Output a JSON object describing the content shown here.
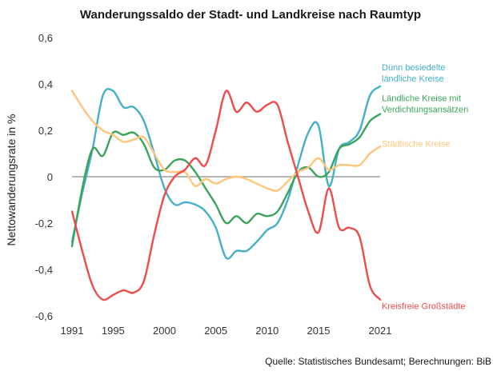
{
  "chart_data": {
    "type": "line",
    "title": "Wanderungssaldo der Stadt- und Landkreise nach Raumtyp",
    "ylabel": "Nettowanderungsrate in %",
    "source": "Quelle: Statistisches Bundesamt; Berechnungen: BiB",
    "xlim": [
      1991,
      2021
    ],
    "ylim": [
      -0.6,
      0.6
    ],
    "x_ticks": [
      1991,
      1995,
      2000,
      2005,
      2010,
      2015,
      2021
    ],
    "y_ticks": [
      0.6,
      0.4,
      0.2,
      0,
      -0.2,
      -0.4,
      -0.6
    ],
    "y_tick_labels": [
      "0,6",
      "0,4",
      "0,2",
      "0",
      "-0,2",
      "-0,4",
      "-0,6"
    ],
    "series": [
      {
        "name": "Dünn besiedelte ländliche Kreise",
        "label_lines": [
          "Dünn besiedelte",
          "ländliche Kreise"
        ],
        "color": "#45AFC8",
        "x": [
          1991,
          1992,
          1993,
          1994,
          1995,
          1996,
          1997,
          1998,
          1999,
          2000,
          2001,
          2002,
          2003,
          2004,
          2005,
          2006,
          2007,
          2008,
          2009,
          2010,
          2011,
          2012,
          2013,
          2014,
          2015,
          2016,
          2017,
          2018,
          2019,
          2020,
          2021
        ],
        "values": [
          -0.28,
          -0.07,
          0.12,
          0.35,
          0.37,
          0.3,
          0.3,
          0.24,
          0.1,
          -0.05,
          -0.12,
          -0.11,
          -0.12,
          -0.15,
          -0.22,
          -0.35,
          -0.32,
          -0.32,
          -0.28,
          -0.23,
          -0.2,
          -0.1,
          0.05,
          0.19,
          0.22,
          -0.04,
          0.12,
          0.15,
          0.2,
          0.35,
          0.39
        ]
      },
      {
        "name": "Ländliche Kreise mit Verdichtungsansätzen",
        "label_lines": [
          "Ländliche Kreise mit",
          "Verdichtungsansätzen"
        ],
        "color": "#3BA35A",
        "x": [
          1991,
          1992,
          1993,
          1994,
          1995,
          1996,
          1997,
          1998,
          1999,
          2000,
          2001,
          2002,
          2003,
          2004,
          2005,
          2006,
          2007,
          2008,
          2009,
          2010,
          2011,
          2012,
          2013,
          2014,
          2015,
          2016,
          2017,
          2018,
          2019,
          2020,
          2021
        ],
        "values": [
          -0.3,
          -0.05,
          0.12,
          0.09,
          0.19,
          0.18,
          0.19,
          0.14,
          0.04,
          0.03,
          0.07,
          0.07,
          0.02,
          -0.05,
          -0.12,
          -0.2,
          -0.17,
          -0.2,
          -0.16,
          -0.17,
          -0.15,
          -0.07,
          0.02,
          0.04,
          0.0,
          0.02,
          0.12,
          0.14,
          0.17,
          0.24,
          0.27
        ]
      },
      {
        "name": "Städtische Kreise",
        "label_lines": [
          "Städtische Kreise"
        ],
        "color": "#FFC57A",
        "x": [
          1991,
          1992,
          1993,
          1994,
          1995,
          1996,
          1997,
          1998,
          1999,
          2000,
          2001,
          2002,
          2003,
          2004,
          2005,
          2006,
          2007,
          2008,
          2009,
          2010,
          2011,
          2012,
          2013,
          2014,
          2015,
          2016,
          2017,
          2018,
          2019,
          2020,
          2021
        ],
        "values": [
          0.37,
          0.3,
          0.24,
          0.2,
          0.18,
          0.15,
          0.16,
          0.17,
          0.1,
          0.03,
          0.02,
          0.02,
          -0.04,
          -0.01,
          -0.03,
          -0.01,
          0.0,
          -0.01,
          -0.03,
          -0.05,
          -0.06,
          -0.02,
          0.02,
          0.04,
          0.08,
          0.03,
          0.05,
          0.05,
          0.05,
          0.1,
          0.13
        ]
      },
      {
        "name": "Kreisfreie Großstädte",
        "label_lines": [
          "Kreisfreie Großstädte"
        ],
        "color": "#EE4B4B",
        "x": [
          1991,
          1992,
          1993,
          1994,
          1995,
          1996,
          1997,
          1998,
          1999,
          2000,
          2001,
          2002,
          2003,
          2004,
          2005,
          2006,
          2007,
          2008,
          2009,
          2010,
          2011,
          2012,
          2013,
          2014,
          2015,
          2016,
          2017,
          2018,
          2019,
          2020,
          2021
        ],
        "values": [
          -0.15,
          -0.32,
          -0.47,
          -0.53,
          -0.51,
          -0.49,
          -0.5,
          -0.45,
          -0.25,
          -0.08,
          0.0,
          0.03,
          0.08,
          0.05,
          0.2,
          0.37,
          0.28,
          0.32,
          0.28,
          0.31,
          0.31,
          0.15,
          0.0,
          -0.15,
          -0.24,
          -0.05,
          -0.22,
          -0.22,
          -0.26,
          -0.47,
          -0.53
        ]
      }
    ]
  }
}
